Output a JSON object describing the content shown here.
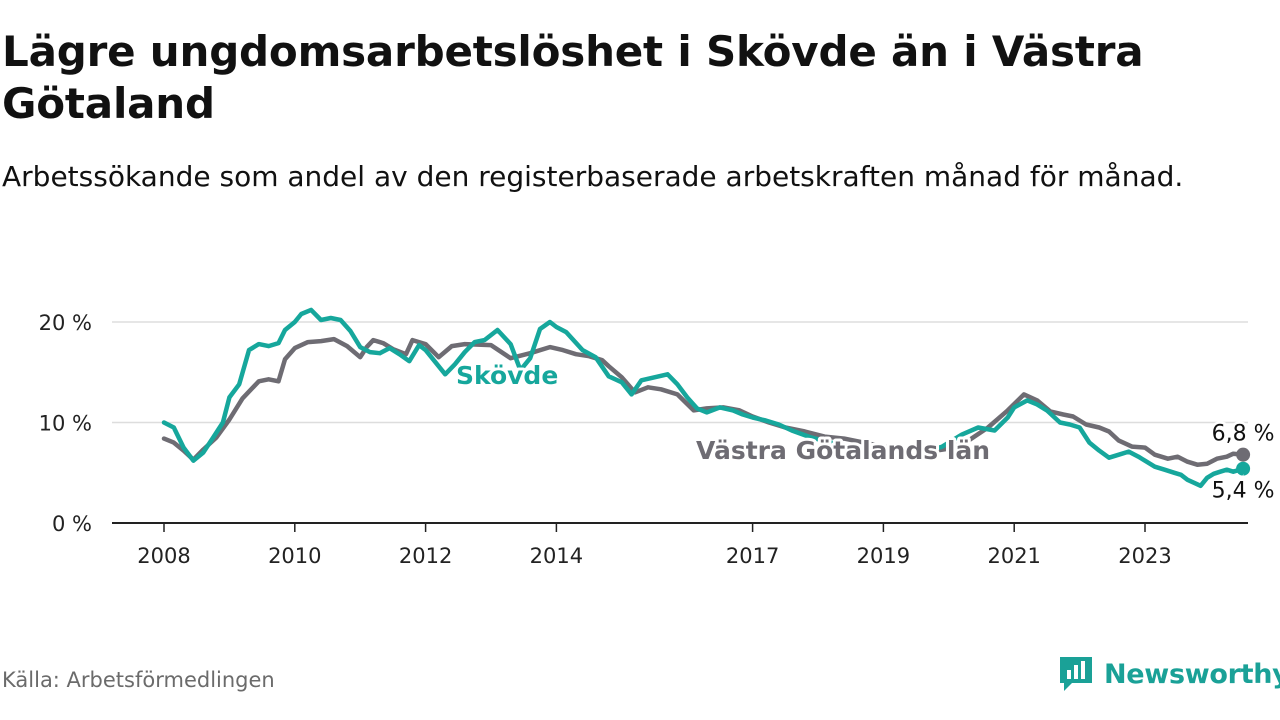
{
  "title": "Lägre ungdomsarbetslöshet i Skövde än i Västra Götaland",
  "subtitle": "Arbetssökande som andel av den registerbaserade arbetskraften månad för månad.",
  "source": "Källa: Arbetsförmedlingen",
  "brand": "Newsworthy",
  "colors": {
    "skovde": "#16a79c",
    "vg": "#6e6c73",
    "grid": "#dddddd",
    "axis": "#222222",
    "brand": "#1aa197"
  },
  "chart_data": {
    "type": "line",
    "title": "Lägre ungdomsarbetslöshet i Skövde än i Västra Götaland",
    "xlabel": "",
    "ylabel": "",
    "ylim": [
      0,
      20
    ],
    "xlim": [
      2008,
      2024.7
    ],
    "y_ticks": [
      0,
      10,
      20
    ],
    "y_tick_labels": [
      "0 %",
      "10 %",
      "20 %"
    ],
    "x_ticks": [
      2008,
      2010,
      2012,
      2014,
      2017,
      2019,
      2021,
      2023
    ],
    "x_tick_labels": [
      "2008",
      "2010",
      "2012",
      "2014",
      "2017",
      "2019",
      "2021",
      "2023"
    ],
    "series": [
      {
        "name": "Västra Götalands län",
        "label": "Västra Götalands län",
        "end_label": "6,8 %",
        "points": [
          [
            2008.0,
            8.4
          ],
          [
            2008.15,
            8.0
          ],
          [
            2008.3,
            7.2
          ],
          [
            2008.45,
            6.3
          ],
          [
            2008.6,
            7.3
          ],
          [
            2008.8,
            8.5
          ],
          [
            2009.0,
            10.3
          ],
          [
            2009.2,
            12.4
          ],
          [
            2009.45,
            14.1
          ],
          [
            2009.6,
            14.3
          ],
          [
            2009.75,
            14.1
          ],
          [
            2009.85,
            16.3
          ],
          [
            2010.0,
            17.4
          ],
          [
            2010.2,
            18.0
          ],
          [
            2010.4,
            18.1
          ],
          [
            2010.6,
            18.3
          ],
          [
            2010.8,
            17.6
          ],
          [
            2011.0,
            16.5
          ],
          [
            2011.1,
            17.5
          ],
          [
            2011.2,
            18.2
          ],
          [
            2011.35,
            17.9
          ],
          [
            2011.5,
            17.3
          ],
          [
            2011.7,
            16.8
          ],
          [
            2011.8,
            18.2
          ],
          [
            2012.0,
            17.8
          ],
          [
            2012.2,
            16.5
          ],
          [
            2012.4,
            17.6
          ],
          [
            2012.6,
            17.8
          ],
          [
            2013.0,
            17.7
          ],
          [
            2013.3,
            16.4
          ],
          [
            2013.6,
            16.9
          ],
          [
            2013.9,
            17.5
          ],
          [
            2014.1,
            17.2
          ],
          [
            2014.3,
            16.8
          ],
          [
            2014.5,
            16.6
          ],
          [
            2014.7,
            16.2
          ],
          [
            2014.8,
            15.6
          ],
          [
            2015.0,
            14.5
          ],
          [
            2015.2,
            13.0
          ],
          [
            2015.4,
            13.5
          ],
          [
            2015.6,
            13.3
          ],
          [
            2015.85,
            12.8
          ],
          [
            2016.1,
            11.2
          ],
          [
            2016.3,
            11.4
          ],
          [
            2016.55,
            11.5
          ],
          [
            2016.8,
            11.2
          ],
          [
            2017.0,
            10.6
          ],
          [
            2017.25,
            10.0
          ],
          [
            2017.5,
            9.5
          ],
          [
            2017.8,
            9.1
          ],
          [
            2018.1,
            8.6
          ],
          [
            2018.4,
            8.4
          ],
          [
            2018.7,
            8.0
          ],
          [
            2019.0,
            7.6
          ],
          [
            2019.3,
            7.3
          ],
          [
            2019.6,
            7.0
          ],
          [
            2020.0,
            7.4
          ],
          [
            2020.3,
            8.2
          ],
          [
            2020.6,
            9.5
          ],
          [
            2020.9,
            11.2
          ],
          [
            2021.15,
            12.8
          ],
          [
            2021.35,
            12.2
          ],
          [
            2021.55,
            11.1
          ],
          [
            2021.75,
            10.8
          ],
          [
            2021.9,
            10.6
          ],
          [
            2022.1,
            9.8
          ],
          [
            2022.3,
            9.5
          ],
          [
            2022.45,
            9.1
          ],
          [
            2022.6,
            8.2
          ],
          [
            2022.8,
            7.6
          ],
          [
            2023.0,
            7.5
          ],
          [
            2023.15,
            6.8
          ],
          [
            2023.35,
            6.4
          ],
          [
            2023.5,
            6.6
          ],
          [
            2023.65,
            6.1
          ],
          [
            2023.8,
            5.8
          ],
          [
            2023.95,
            5.9
          ],
          [
            2024.1,
            6.4
          ],
          [
            2024.25,
            6.6
          ],
          [
            2024.35,
            6.9
          ],
          [
            2024.5,
            6.8
          ]
        ]
      },
      {
        "name": "Skövde",
        "label": "Skövde",
        "end_label": "5,4 %",
        "points": [
          [
            2008.0,
            10.0
          ],
          [
            2008.15,
            9.5
          ],
          [
            2008.3,
            7.5
          ],
          [
            2008.45,
            6.2
          ],
          [
            2008.6,
            7.0
          ],
          [
            2008.75,
            8.5
          ],
          [
            2008.9,
            10.0
          ],
          [
            2009.0,
            12.5
          ],
          [
            2009.15,
            13.8
          ],
          [
            2009.3,
            17.2
          ],
          [
            2009.45,
            17.8
          ],
          [
            2009.6,
            17.6
          ],
          [
            2009.75,
            17.9
          ],
          [
            2009.85,
            19.2
          ],
          [
            2010.0,
            20.0
          ],
          [
            2010.1,
            20.8
          ],
          [
            2010.25,
            21.2
          ],
          [
            2010.4,
            20.2
          ],
          [
            2010.55,
            20.4
          ],
          [
            2010.7,
            20.2
          ],
          [
            2010.85,
            19.1
          ],
          [
            2011.0,
            17.5
          ],
          [
            2011.15,
            17.0
          ],
          [
            2011.3,
            16.9
          ],
          [
            2011.45,
            17.4
          ],
          [
            2011.6,
            16.8
          ],
          [
            2011.75,
            16.1
          ],
          [
            2011.9,
            17.7
          ],
          [
            2012.0,
            17.2
          ],
          [
            2012.15,
            16.0
          ],
          [
            2012.3,
            14.8
          ],
          [
            2012.45,
            15.8
          ],
          [
            2012.6,
            17.0
          ],
          [
            2012.75,
            18.0
          ],
          [
            2012.9,
            18.2
          ],
          [
            2013.1,
            19.2
          ],
          [
            2013.3,
            17.8
          ],
          [
            2013.45,
            15.2
          ],
          [
            2013.6,
            16.4
          ],
          [
            2013.75,
            19.3
          ],
          [
            2013.9,
            20.0
          ],
          [
            2014.0,
            19.5
          ],
          [
            2014.15,
            19.0
          ],
          [
            2014.4,
            17.2
          ],
          [
            2014.6,
            16.5
          ],
          [
            2014.8,
            14.6
          ],
          [
            2015.0,
            14.0
          ],
          [
            2015.15,
            12.8
          ],
          [
            2015.3,
            14.2
          ],
          [
            2015.5,
            14.5
          ],
          [
            2015.7,
            14.8
          ],
          [
            2015.85,
            13.8
          ],
          [
            2016.0,
            12.5
          ],
          [
            2016.15,
            11.4
          ],
          [
            2016.3,
            11.0
          ],
          [
            2016.5,
            11.5
          ],
          [
            2016.7,
            11.2
          ],
          [
            2016.85,
            10.8
          ],
          [
            2017.0,
            10.5
          ],
          [
            2017.2,
            10.2
          ],
          [
            2017.4,
            9.8
          ],
          [
            2017.6,
            9.2
          ],
          [
            2017.9,
            8.5
          ],
          [
            2018.2,
            8.0
          ],
          [
            2018.5,
            7.6
          ],
          [
            2018.8,
            7.3
          ],
          [
            2019.0,
            7.2
          ],
          [
            2019.3,
            6.8
          ],
          [
            2019.6,
            7.0
          ],
          [
            2019.9,
            7.6
          ],
          [
            2020.2,
            8.8
          ],
          [
            2020.45,
            9.5
          ],
          [
            2020.7,
            9.2
          ],
          [
            2020.9,
            10.5
          ],
          [
            2021.0,
            11.5
          ],
          [
            2021.2,
            12.2
          ],
          [
            2021.35,
            11.8
          ],
          [
            2021.5,
            11.2
          ],
          [
            2021.7,
            10.0
          ],
          [
            2021.85,
            9.8
          ],
          [
            2022.0,
            9.5
          ],
          [
            2022.15,
            8.0
          ],
          [
            2022.3,
            7.2
          ],
          [
            2022.45,
            6.5
          ],
          [
            2022.6,
            6.8
          ],
          [
            2022.75,
            7.1
          ],
          [
            2022.9,
            6.6
          ],
          [
            2023.0,
            6.2
          ],
          [
            2023.15,
            5.6
          ],
          [
            2023.3,
            5.3
          ],
          [
            2023.45,
            5.0
          ],
          [
            2023.55,
            4.8
          ],
          [
            2023.65,
            4.3
          ],
          [
            2023.75,
            4.0
          ],
          [
            2023.85,
            3.7
          ],
          [
            2023.95,
            4.5
          ],
          [
            2024.05,
            4.9
          ],
          [
            2024.15,
            5.1
          ],
          [
            2024.25,
            5.3
          ],
          [
            2024.35,
            5.1
          ],
          [
            2024.5,
            5.4
          ]
        ]
      }
    ]
  }
}
